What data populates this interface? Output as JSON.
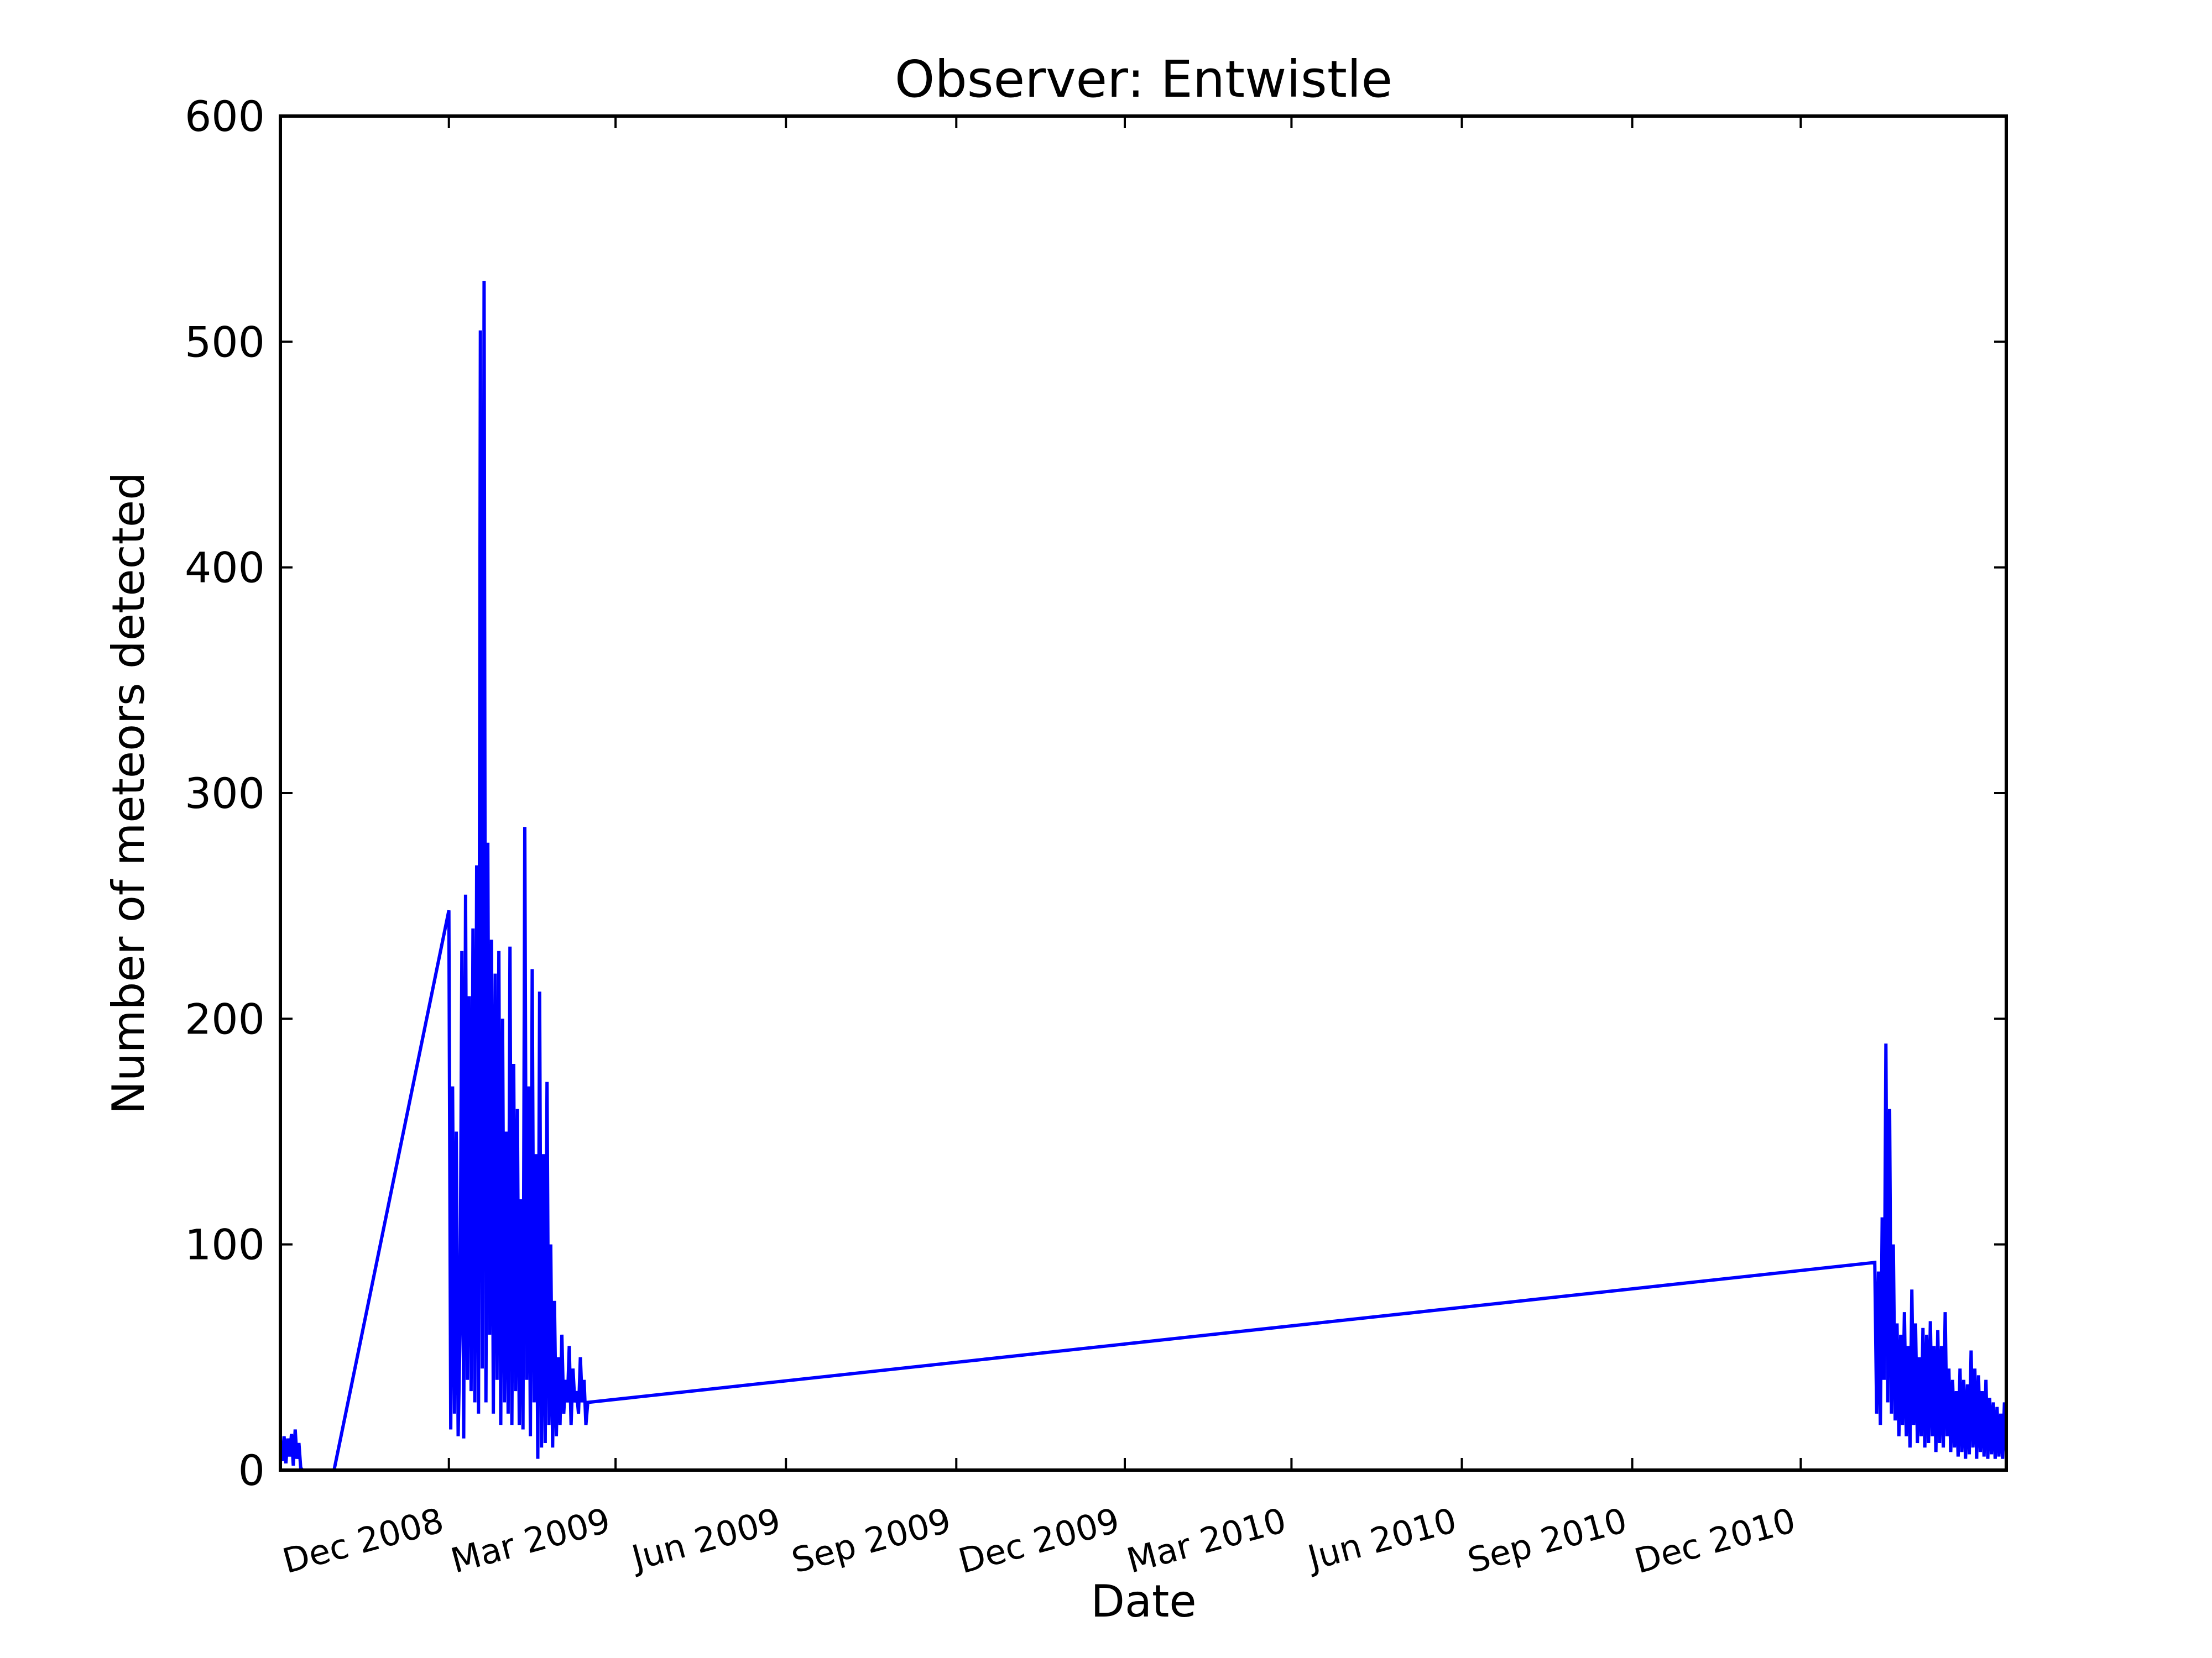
{
  "chart_data": {
    "type": "line",
    "title": "Observer: Entwistle",
    "xlabel": "Date",
    "ylabel": "Number of meteors detected",
    "xlim": [
      "2008-09-01",
      "2011-03-22"
    ],
    "ylim": [
      0,
      600
    ],
    "y_ticks": [
      0,
      100,
      200,
      300,
      400,
      500,
      600
    ],
    "x_ticks": [
      {
        "date": "2008-12-01",
        "label": "Dec 2008"
      },
      {
        "date": "2009-03-01",
        "label": "Mar 2009"
      },
      {
        "date": "2009-06-01",
        "label": "Jun 2009"
      },
      {
        "date": "2009-09-01",
        "label": "Sep 2009"
      },
      {
        "date": "2009-12-01",
        "label": "Dec 2009"
      },
      {
        "date": "2010-03-01",
        "label": "Mar 2010"
      },
      {
        "date": "2010-06-01",
        "label": "Jun 2010"
      },
      {
        "date": "2010-09-01",
        "label": "Sep 2010"
      },
      {
        "date": "2010-12-01",
        "label": "Dec 2010"
      }
    ],
    "grid": false,
    "legend": "none",
    "series": [
      {
        "color": "#0000ff",
        "x": [
          "2008-09-01",
          "2008-09-02",
          "2008-09-03",
          "2008-09-04",
          "2008-09-05",
          "2008-09-06",
          "2008-09-07",
          "2008-09-08",
          "2008-09-09",
          "2008-09-10",
          "2008-09-11",
          "2008-09-12",
          "2008-09-13",
          "2008-09-30",
          "2008-12-01",
          "2008-12-02",
          "2008-12-03",
          "2008-12-04",
          "2008-12-05",
          "2008-12-06",
          "2008-12-07",
          "2008-12-08",
          "2008-12-09",
          "2008-12-10",
          "2008-12-11",
          "2008-12-12",
          "2008-12-13",
          "2008-12-14",
          "2008-12-15",
          "2008-12-16",
          "2008-12-17",
          "2008-12-18",
          "2008-12-19",
          "2008-12-20",
          "2008-12-21",
          "2008-12-22",
          "2008-12-23",
          "2008-12-24",
          "2008-12-25",
          "2008-12-26",
          "2008-12-27",
          "2008-12-28",
          "2008-12-29",
          "2008-12-30",
          "2008-12-31",
          "2009-01-01",
          "2009-01-02",
          "2009-01-03",
          "2009-01-04",
          "2009-01-05",
          "2009-01-06",
          "2009-01-07",
          "2009-01-08",
          "2009-01-09",
          "2009-01-10",
          "2009-01-11",
          "2009-01-12",
          "2009-01-13",
          "2009-01-14",
          "2009-01-15",
          "2009-01-16",
          "2009-01-17",
          "2009-01-18",
          "2009-01-19",
          "2009-01-20",
          "2009-01-21",
          "2009-01-22",
          "2009-01-23",
          "2009-01-24",
          "2009-01-25",
          "2009-01-26",
          "2009-01-27",
          "2009-01-28",
          "2009-01-29",
          "2009-01-30",
          "2009-01-31",
          "2009-02-01",
          "2009-02-02",
          "2009-02-03",
          "2009-02-04",
          "2009-02-05",
          "2009-02-06",
          "2009-02-07",
          "2009-02-08",
          "2009-02-09",
          "2009-02-10",
          "2009-02-11",
          "2009-02-12",
          "2009-02-13",
          "2009-02-14",
          "2011-01-10",
          "2011-01-11",
          "2011-01-12",
          "2011-01-13",
          "2011-01-14",
          "2011-01-15",
          "2011-01-16",
          "2011-01-17",
          "2011-01-18",
          "2011-01-19",
          "2011-01-20",
          "2011-01-21",
          "2011-01-22",
          "2011-01-23",
          "2011-01-24",
          "2011-01-25",
          "2011-01-26",
          "2011-01-27",
          "2011-01-28",
          "2011-01-29",
          "2011-01-30",
          "2011-01-31",
          "2011-02-01",
          "2011-02-02",
          "2011-02-03",
          "2011-02-04",
          "2011-02-05",
          "2011-02-06",
          "2011-02-07",
          "2011-02-08",
          "2011-02-09",
          "2011-02-10",
          "2011-02-11",
          "2011-02-12",
          "2011-02-13",
          "2011-02-14",
          "2011-02-15",
          "2011-02-16",
          "2011-02-17",
          "2011-02-18",
          "2011-02-19",
          "2011-02-20",
          "2011-02-21",
          "2011-02-22",
          "2011-02-23",
          "2011-02-24",
          "2011-02-25",
          "2011-02-26",
          "2011-02-27",
          "2011-02-28",
          "2011-03-01",
          "2011-03-02",
          "2011-03-03",
          "2011-03-04",
          "2011-03-05",
          "2011-03-06",
          "2011-03-07",
          "2011-03-08",
          "2011-03-09",
          "2011-03-10",
          "2011-03-11",
          "2011-03-12",
          "2011-03-13",
          "2011-03-14",
          "2011-03-15",
          "2011-03-16",
          "2011-03-17",
          "2011-03-18",
          "2011-03-19",
          "2011-03-20",
          "2011-03-21",
          "2011-03-22"
        ],
        "y": [
          12,
          4,
          15,
          3,
          14,
          6,
          16,
          2,
          18,
          5,
          12,
          1,
          0,
          0,
          248,
          18,
          170,
          25,
          150,
          15,
          60,
          230,
          14,
          255,
          40,
          210,
          35,
          240,
          30,
          268,
          25,
          505,
          45,
          527,
          30,
          278,
          60,
          235,
          25,
          220,
          40,
          230,
          20,
          200,
          30,
          150,
          25,
          232,
          20,
          180,
          35,
          160,
          20,
          120,
          18,
          285,
          40,
          170,
          15,
          222,
          30,
          140,
          5,
          212,
          10,
          140,
          12,
          172,
          20,
          100,
          10,
          75,
          15,
          50,
          20,
          60,
          25,
          40,
          30,
          55,
          20,
          45,
          30,
          35,
          25,
          50,
          30,
          40,
          20,
          30,
          92,
          25,
          88,
          20,
          112,
          40,
          189,
          30,
          160,
          25,
          100,
          22,
          65,
          15,
          60,
          20,
          70,
          15,
          55,
          10,
          80,
          20,
          65,
          12,
          50,
          15,
          63,
          10,
          60,
          12,
          66,
          15,
          55,
          8,
          62,
          12,
          55,
          10,
          70,
          15,
          45,
          8,
          40,
          10,
          35,
          6,
          45,
          8,
          40,
          5,
          38,
          7,
          53,
          10,
          45,
          5,
          42,
          8,
          35,
          6,
          40,
          5,
          32,
          7,
          30,
          5,
          28,
          6,
          25,
          5,
          30,
          8
        ]
      }
    ]
  }
}
